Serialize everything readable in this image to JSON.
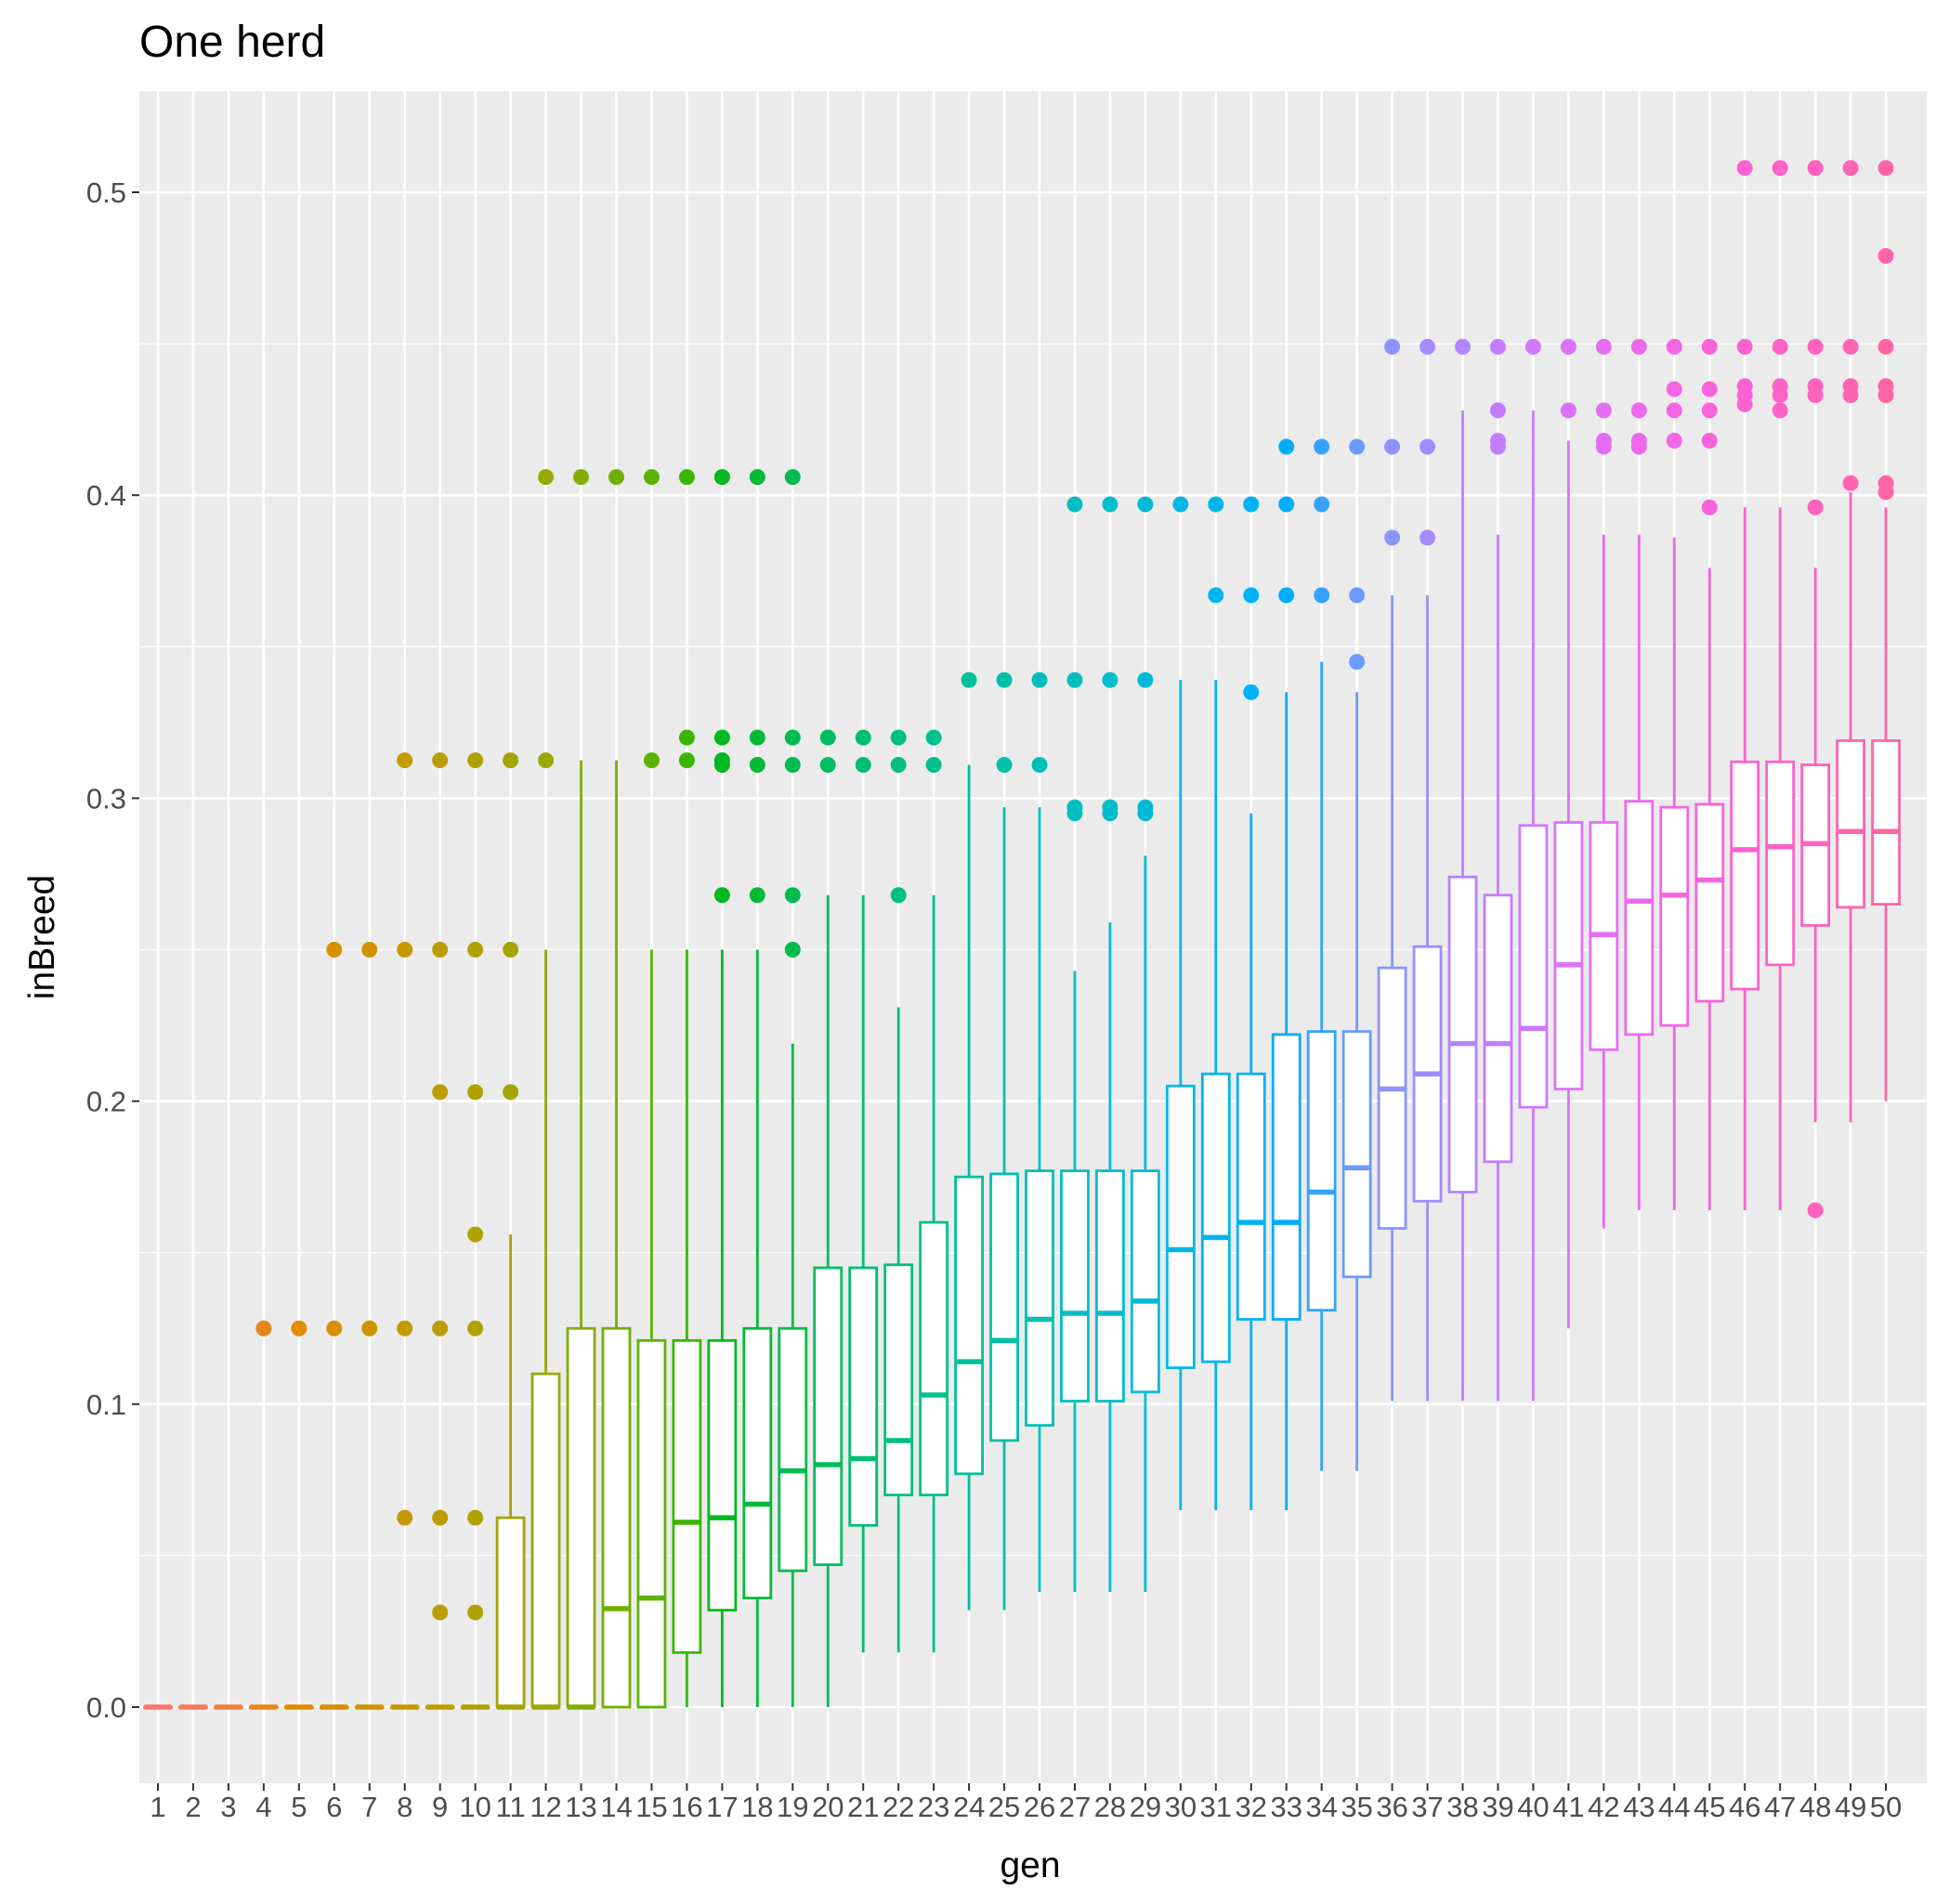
{
  "chart_data": {
    "type": "boxplot",
    "title": "One herd",
    "xlabel": "gen",
    "ylabel": "inBreed",
    "ylim": [
      -0.025,
      0.53
    ],
    "yticks": [
      0.0,
      0.1,
      0.2,
      0.3,
      0.4,
      0.5
    ],
    "ytick_labels": [
      "0.0",
      "0.1",
      "0.2",
      "0.3",
      "0.4",
      "0.5"
    ],
    "grid": true,
    "legend": "none",
    "color_scale": "hue gradient, red (gen 1) to pink (gen 50)",
    "categories": [
      "1",
      "2",
      "3",
      "4",
      "5",
      "6",
      "7",
      "8",
      "9",
      "10",
      "11",
      "12",
      "13",
      "14",
      "15",
      "16",
      "17",
      "18",
      "19",
      "20",
      "21",
      "22",
      "23",
      "24",
      "25",
      "26",
      "27",
      "28",
      "29",
      "30",
      "31",
      "32",
      "33",
      "34",
      "35",
      "36",
      "37",
      "38",
      "39",
      "40",
      "41",
      "42",
      "43",
      "44",
      "45",
      "46",
      "47",
      "48",
      "49",
      "50"
    ],
    "boxes": [
      {
        "gen": "1",
        "color": "#F8766D",
        "lower": 0,
        "q1": 0,
        "median": 0,
        "q3": 0,
        "upper": 0,
        "outliers": []
      },
      {
        "gen": "2",
        "color": "#F37B59",
        "lower": 0,
        "q1": 0,
        "median": 0,
        "q3": 0,
        "upper": 0,
        "outliers": []
      },
      {
        "gen": "3",
        "color": "#ED8141",
        "lower": 0,
        "q1": 0,
        "median": 0,
        "q3": 0,
        "upper": 0,
        "outliers": []
      },
      {
        "gen": "4",
        "color": "#E7861B",
        "lower": 0,
        "q1": 0,
        "median": 0,
        "q3": 0,
        "upper": 0,
        "outliers": [
          0.125
        ]
      },
      {
        "gen": "5",
        "color": "#E08B00",
        "lower": 0,
        "q1": 0,
        "median": 0,
        "q3": 0,
        "upper": 0,
        "outliers": [
          0.125
        ]
      },
      {
        "gen": "6",
        "color": "#D89000",
        "lower": 0,
        "q1": 0,
        "median": 0,
        "q3": 0,
        "upper": 0,
        "outliers": [
          0.125,
          0.25
        ]
      },
      {
        "gen": "7",
        "color": "#CF9400",
        "lower": 0,
        "q1": 0,
        "median": 0,
        "q3": 0,
        "upper": 0,
        "outliers": [
          0.125,
          0.25
        ]
      },
      {
        "gen": "8",
        "color": "#C59900",
        "lower": 0,
        "q1": 0,
        "median": 0,
        "q3": 0,
        "upper": 0,
        "outliers": [
          0.0625,
          0.125,
          0.25,
          0.3125
        ]
      },
      {
        "gen": "9",
        "color": "#BB9D00",
        "lower": 0,
        "q1": 0,
        "median": 0,
        "q3": 0,
        "upper": 0,
        "outliers": [
          0.03125,
          0.0625,
          0.125,
          0.203,
          0.25,
          0.3125
        ]
      },
      {
        "gen": "10",
        "color": "#AFA100",
        "lower": 0,
        "q1": 0,
        "median": 0,
        "q3": 0,
        "upper": 0,
        "outliers": [
          0.03125,
          0.0625,
          0.125,
          0.156,
          0.203,
          0.25,
          0.3125
        ]
      },
      {
        "gen": "11",
        "color": "#A3A500",
        "lower": 0,
        "q1": 0,
        "median": 0,
        "q3": 0.0625,
        "upper": 0.156,
        "outliers": [
          0.203,
          0.25,
          0.3125
        ]
      },
      {
        "gen": "12",
        "color": "#95A900",
        "lower": 0,
        "q1": 0,
        "median": 0,
        "q3": 0.11,
        "upper": 0.25,
        "outliers": [
          0.3125,
          0.406
        ]
      },
      {
        "gen": "13",
        "color": "#85AD00",
        "lower": 0,
        "q1": 0,
        "median": 0,
        "q3": 0.125,
        "upper": 0.3125,
        "outliers": [
          0.406
        ]
      },
      {
        "gen": "14",
        "color": "#72B000",
        "lower": 0,
        "q1": 0,
        "median": 0.0325,
        "q3": 0.125,
        "upper": 0.3125,
        "outliers": [
          0.406
        ]
      },
      {
        "gen": "15",
        "color": "#5BB300",
        "lower": 0,
        "q1": 0,
        "median": 0.036,
        "q3": 0.121,
        "upper": 0.25,
        "outliers": [
          0.3125,
          0.406
        ]
      },
      {
        "gen": "16",
        "color": "#39B600",
        "lower": 0,
        "q1": 0.018,
        "median": 0.061,
        "q3": 0.121,
        "upper": 0.25,
        "outliers": [
          0.3125,
          0.32,
          0.406
        ]
      },
      {
        "gen": "17",
        "color": "#00B81F",
        "lower": 0,
        "q1": 0.032,
        "median": 0.0625,
        "q3": 0.121,
        "upper": 0.25,
        "outliers": [
          0.268,
          0.311,
          0.3125,
          0.32,
          0.406
        ]
      },
      {
        "gen": "18",
        "color": "#00BA38",
        "lower": 0,
        "q1": 0.036,
        "median": 0.067,
        "q3": 0.125,
        "upper": 0.25,
        "outliers": [
          0.268,
          0.311,
          0.32,
          0.406
        ]
      },
      {
        "gen": "19",
        "color": "#00BB4E",
        "lower": 0,
        "q1": 0.045,
        "median": 0.078,
        "q3": 0.125,
        "upper": 0.219,
        "outliers": [
          0.25,
          0.268,
          0.311,
          0.32,
          0.406
        ]
      },
      {
        "gen": "20",
        "color": "#00BD5F",
        "lower": 0,
        "q1": 0.047,
        "median": 0.08,
        "q3": 0.145,
        "upper": 0.268,
        "outliers": [
          0.311,
          0.32
        ]
      },
      {
        "gen": "21",
        "color": "#00BE70",
        "lower": 0.018,
        "q1": 0.06,
        "median": 0.082,
        "q3": 0.145,
        "upper": 0.268,
        "outliers": [
          0.311,
          0.32
        ]
      },
      {
        "gen": "22",
        "color": "#00BF7F",
        "lower": 0.018,
        "q1": 0.07,
        "median": 0.088,
        "q3": 0.146,
        "upper": 0.231,
        "outliers": [
          0.268,
          0.311,
          0.32
        ]
      },
      {
        "gen": "23",
        "color": "#00C08D",
        "lower": 0.018,
        "q1": 0.07,
        "median": 0.103,
        "q3": 0.16,
        "upper": 0.268,
        "outliers": [
          0.311,
          0.32
        ]
      },
      {
        "gen": "24",
        "color": "#00C09B",
        "lower": 0.032,
        "q1": 0.077,
        "median": 0.114,
        "q3": 0.175,
        "upper": 0.311,
        "outliers": [
          0.339
        ]
      },
      {
        "gen": "25",
        "color": "#00C0A8",
        "lower": 0.032,
        "q1": 0.088,
        "median": 0.121,
        "q3": 0.176,
        "upper": 0.297,
        "outliers": [
          0.311,
          0.339
        ]
      },
      {
        "gen": "26",
        "color": "#00C0B5",
        "lower": 0.038,
        "q1": 0.093,
        "median": 0.128,
        "q3": 0.177,
        "upper": 0.297,
        "outliers": [
          0.311,
          0.339
        ]
      },
      {
        "gen": "27",
        "color": "#00BFC1",
        "lower": 0.038,
        "q1": 0.101,
        "median": 0.13,
        "q3": 0.177,
        "upper": 0.243,
        "outliers": [
          0.295,
          0.297,
          0.339,
          0.397
        ]
      },
      {
        "gen": "28",
        "color": "#00BDCD",
        "lower": 0.038,
        "q1": 0.101,
        "median": 0.13,
        "q3": 0.177,
        "upper": 0.259,
        "outliers": [
          0.295,
          0.297,
          0.339,
          0.397
        ]
      },
      {
        "gen": "29",
        "color": "#00BBD8",
        "lower": 0.038,
        "q1": 0.104,
        "median": 0.134,
        "q3": 0.177,
        "upper": 0.281,
        "outliers": [
          0.295,
          0.297,
          0.339,
          0.397
        ]
      },
      {
        "gen": "30",
        "color": "#00B8E3",
        "lower": 0.065,
        "q1": 0.112,
        "median": 0.151,
        "q3": 0.205,
        "upper": 0.339,
        "outliers": [
          0.397
        ]
      },
      {
        "gen": "31",
        "color": "#00B5EC",
        "lower": 0.065,
        "q1": 0.114,
        "median": 0.155,
        "q3": 0.209,
        "upper": 0.339,
        "outliers": [
          0.367,
          0.397
        ]
      },
      {
        "gen": "32",
        "color": "#00B1F4",
        "lower": 0.065,
        "q1": 0.128,
        "median": 0.16,
        "q3": 0.209,
        "upper": 0.295,
        "outliers": [
          0.335,
          0.367,
          0.397
        ]
      },
      {
        "gen": "33",
        "color": "#00ACFC",
        "lower": 0.065,
        "q1": 0.128,
        "median": 0.16,
        "q3": 0.222,
        "upper": 0.335,
        "outliers": [
          0.367,
          0.397,
          0.416
        ]
      },
      {
        "gen": "34",
        "color": "#35A2FF",
        "lower": 0.078,
        "q1": 0.131,
        "median": 0.17,
        "q3": 0.223,
        "upper": 0.345,
        "outliers": [
          0.367,
          0.397,
          0.416
        ]
      },
      {
        "gen": "35",
        "color": "#6B9BFF",
        "lower": 0.078,
        "q1": 0.142,
        "median": 0.178,
        "q3": 0.223,
        "upper": 0.335,
        "outliers": [
          0.345,
          0.367,
          0.416
        ]
      },
      {
        "gen": "36",
        "color": "#8B93FF",
        "lower": 0.101,
        "q1": 0.158,
        "median": 0.204,
        "q3": 0.244,
        "upper": 0.367,
        "outliers": [
          0.386,
          0.416,
          0.449
        ]
      },
      {
        "gen": "37",
        "color": "#A28AFF",
        "lower": 0.101,
        "q1": 0.167,
        "median": 0.209,
        "q3": 0.251,
        "upper": 0.367,
        "outliers": [
          0.386,
          0.416,
          0.449
        ]
      },
      {
        "gen": "38",
        "color": "#B384FF",
        "lower": 0.101,
        "q1": 0.17,
        "median": 0.219,
        "q3": 0.274,
        "upper": 0.428,
        "outliers": [
          0.449
        ]
      },
      {
        "gen": "39",
        "color": "#C27DFF",
        "lower": 0.101,
        "q1": 0.18,
        "median": 0.219,
        "q3": 0.268,
        "upper": 0.387,
        "outliers": [
          0.416,
          0.418,
          0.428,
          0.449
        ]
      },
      {
        "gen": "40",
        "color": "#CF78FF",
        "lower": 0.101,
        "q1": 0.198,
        "median": 0.224,
        "q3": 0.291,
        "upper": 0.428,
        "outliers": [
          0.449
        ]
      },
      {
        "gen": "41",
        "color": "#DB72FB",
        "lower": 0.125,
        "q1": 0.204,
        "median": 0.245,
        "q3": 0.292,
        "upper": 0.418,
        "outliers": [
          0.428,
          0.449
        ]
      },
      {
        "gen": "42",
        "color": "#E56DF5",
        "lower": 0.158,
        "q1": 0.217,
        "median": 0.255,
        "q3": 0.292,
        "upper": 0.387,
        "outliers": [
          0.416,
          0.418,
          0.428,
          0.449
        ]
      },
      {
        "gen": "43",
        "color": "#ED68ED",
        "lower": 0.164,
        "q1": 0.222,
        "median": 0.266,
        "q3": 0.299,
        "upper": 0.387,
        "outliers": [
          0.416,
          0.418,
          0.428,
          0.449
        ]
      },
      {
        "gen": "44",
        "color": "#F365E5",
        "lower": 0.164,
        "q1": 0.225,
        "median": 0.268,
        "q3": 0.297,
        "upper": 0.386,
        "outliers": [
          0.418,
          0.428,
          0.435,
          0.449
        ]
      },
      {
        "gen": "45",
        "color": "#F863DB",
        "lower": 0.164,
        "q1": 0.233,
        "median": 0.273,
        "q3": 0.298,
        "upper": 0.376,
        "outliers": [
          0.396,
          0.418,
          0.428,
          0.435,
          0.449
        ]
      },
      {
        "gen": "46",
        "color": "#FC61D2",
        "lower": 0.164,
        "q1": 0.237,
        "median": 0.283,
        "q3": 0.312,
        "upper": 0.396,
        "outliers": [
          0.43,
          0.433,
          0.436,
          0.449,
          0.508
        ]
      },
      {
        "gen": "47",
        "color": "#FE61C7",
        "lower": 0.164,
        "q1": 0.245,
        "median": 0.284,
        "q3": 0.312,
        "upper": 0.396,
        "outliers": [
          0.428,
          0.433,
          0.436,
          0.449,
          0.508
        ]
      },
      {
        "gen": "48",
        "color": "#FF61BC",
        "lower": 0.193,
        "q1": 0.258,
        "median": 0.285,
        "q3": 0.311,
        "upper": 0.376,
        "outliers": [
          0.164,
          0.396,
          0.433,
          0.436,
          0.449,
          0.508
        ]
      },
      {
        "gen": "49",
        "color": "#FF63B1",
        "lower": 0.193,
        "q1": 0.264,
        "median": 0.289,
        "q3": 0.319,
        "upper": 0.401,
        "outliers": [
          0.404,
          0.433,
          0.436,
          0.449,
          0.508
        ]
      },
      {
        "gen": "50",
        "color": "#FF65A6",
        "lower": 0.2,
        "q1": 0.265,
        "median": 0.289,
        "q3": 0.319,
        "upper": 0.396,
        "outliers": [
          0.401,
          0.404,
          0.433,
          0.436,
          0.449,
          0.479,
          0.508
        ]
      }
    ]
  }
}
